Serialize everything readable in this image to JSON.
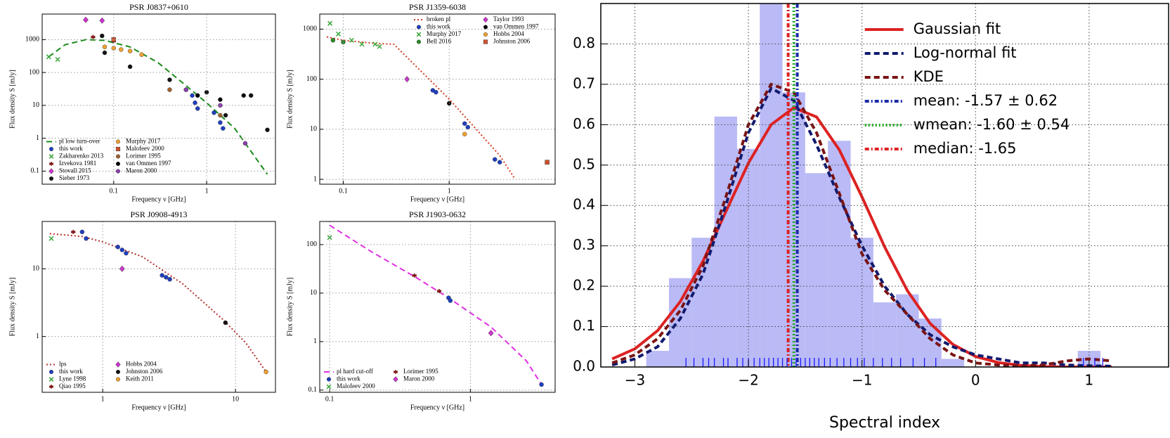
{
  "chart_data": [
    {
      "type": "scatter",
      "title": "PSR J0837+0610",
      "xlabel": "Frequency ν [GHz]",
      "ylabel": "Flux density S [mJy]",
      "xscale": "log",
      "yscale": "log",
      "xlim": [
        0.017,
        5.5
      ],
      "ylim": [
        0.04,
        6000
      ],
      "xticks": [
        0.1,
        1
      ],
      "yticks": [
        0.1,
        1,
        10,
        100,
        1000
      ],
      "grid": true,
      "legend_loc": "lower left",
      "legend_columns": 2,
      "series": [
        {
          "name": "pl low turn-over",
          "color": "#1a8c1a",
          "linestyle": "dashed",
          "x": [
            0.02,
            0.03,
            0.05,
            0.08,
            0.15,
            0.3,
            0.6,
            1,
            2,
            3,
            4.5
          ],
          "values": [
            300,
            700,
            1000,
            950,
            600,
            200,
            40,
            12,
            2,
            0.4,
            0.08
          ]
        },
        {
          "name": "this work",
          "color": "#1f3fbf",
          "marker": "circle",
          "x": [
            0.7,
            0.75,
            0.8,
            1.2,
            1.4,
            1.5
          ],
          "values": [
            20,
            12,
            8,
            6,
            3,
            2
          ]
        },
        {
          "name": "Zakharenko 2013",
          "color": "#3aa63a",
          "marker": "x",
          "x": [
            0.02,
            0.025
          ],
          "values": [
            300,
            250
          ]
        },
        {
          "name": "Izvekova 1981",
          "color": "#7a1010",
          "marker": "star",
          "x": [
            0.06,
            0.1
          ],
          "values": [
            1200,
            900
          ]
        },
        {
          "name": "Stovall 2015",
          "color": "#cc33cc",
          "marker": "diamond",
          "x": [
            0.05,
            0.075
          ],
          "values": [
            4000,
            3800
          ]
        },
        {
          "name": "Sieber 1973",
          "color": "#111111",
          "marker": "circle",
          "x": [
            0.075,
            0.08,
            0.15,
            0.4,
            1,
            1.6,
            3,
            4.5
          ],
          "values": [
            1300,
            400,
            150,
            60,
            25,
            5,
            20,
            1.8
          ]
        },
        {
          "name": "Murphy 2017",
          "color": "#f0a030",
          "marker": "circle",
          "x": [
            0.08,
            0.1,
            0.12,
            0.15,
            0.2
          ],
          "values": [
            600,
            550,
            500,
            450,
            350
          ]
        },
        {
          "name": "Malofeev 2000",
          "color": "#d2522a",
          "marker": "square",
          "x": [
            0.1
          ],
          "values": [
            1000
          ]
        },
        {
          "name": "Lorimer 1995",
          "color": "#a0622d",
          "marker": "circle",
          "x": [
            0.4,
            0.6,
            1.4
          ],
          "values": [
            30,
            30,
            5
          ]
        },
        {
          "name": "van Ommen 1997",
          "color": "#000000",
          "marker": "circle",
          "x": [
            0.8,
            1.4,
            2.5
          ],
          "values": [
            20,
            15,
            20
          ]
        },
        {
          "name": "Maron 2000",
          "color": "#8a3fb0",
          "marker": "circle",
          "x": [
            0.6,
            1.4,
            2.6
          ],
          "values": [
            30,
            10,
            0.7
          ]
        }
      ]
    },
    {
      "type": "scatter",
      "title": "PSR J1359-6038",
      "xlabel": "Frequency ν [GHz]",
      "ylabel": "Flux density S [mJy]",
      "xscale": "log",
      "yscale": "log",
      "xlim": [
        0.06,
        10
      ],
      "ylim": [
        0.8,
        2000
      ],
      "xticks": [
        0.1,
        1
      ],
      "yticks": [
        1,
        10,
        100,
        1000
      ],
      "grid": true,
      "legend_loc": "upper center",
      "legend_columns": 2,
      "series": [
        {
          "name": "broken pl",
          "color": "#d03a1a",
          "linestyle": "dotted",
          "x": [
            0.07,
            0.1,
            0.2,
            0.3,
            1,
            3,
            4.2
          ],
          "values": [
            700,
            600,
            520,
            500,
            40,
            3,
            1
          ]
        },
        {
          "name": "this work",
          "color": "#1f3fbf",
          "marker": "circle",
          "x": [
            0.7,
            0.75,
            1.4,
            1.5,
            2.7,
            3
          ],
          "values": [
            60,
            55,
            13,
            11,
            2.5,
            2.2
          ]
        },
        {
          "name": "Murphy 2017",
          "color": "#3aa63a",
          "marker": "x",
          "x": [
            0.075,
            0.09,
            0.12,
            0.15,
            0.2,
            0.22
          ],
          "values": [
            1300,
            800,
            600,
            500,
            500,
            450
          ]
        },
        {
          "name": "Bell 2016",
          "color": "#2a8a2a",
          "marker": "circle",
          "x": [
            0.08,
            0.1
          ],
          "values": [
            600,
            550
          ]
        },
        {
          "name": "Taylor 1993",
          "color": "#cc33cc",
          "marker": "diamond",
          "x": [
            0.4
          ],
          "values": [
            100
          ]
        },
        {
          "name": "van Ommen 1997",
          "color": "#000000",
          "marker": "circle",
          "x": [
            1
          ],
          "values": [
            33
          ]
        },
        {
          "name": "Hobbs 2004",
          "color": "#f0a030",
          "marker": "circle",
          "x": [
            1.4
          ],
          "values": [
            8
          ]
        },
        {
          "name": "Johnston 2006",
          "color": "#d2522a",
          "marker": "square",
          "x": [
            8.4
          ],
          "values": [
            2.2
          ]
        }
      ]
    },
    {
      "type": "scatter",
      "title": "PSR J0908-4913",
      "xlabel": "Frequency ν [GHz]",
      "ylabel": "Flux density S [mJy]",
      "xscale": "log",
      "yscale": "log",
      "xlim": [
        0.35,
        20
      ],
      "ylim": [
        0.15,
        50
      ],
      "xticks": [
        1,
        10
      ],
      "yticks": [
        1,
        10
      ],
      "grid": true,
      "legend_loc": "lower left",
      "legend_columns": 2,
      "series": [
        {
          "name": "lps",
          "color": "#b0302a",
          "linestyle": "dotted",
          "x": [
            0.4,
            0.7,
            1,
            2,
            4,
            8,
            12,
            17
          ],
          "values": [
            33,
            30,
            25,
            15,
            6,
            1.8,
            0.8,
            0.3
          ]
        },
        {
          "name": "this work",
          "color": "#1f3fbf",
          "marker": "circle",
          "x": [
            0.7,
            0.75,
            1.3,
            1.4,
            1.5,
            2.8,
            3,
            3.2
          ],
          "values": [
            35,
            28,
            21,
            19,
            17,
            8,
            7.5,
            7
          ]
        },
        {
          "name": "Lyne 1998",
          "color": "#3aa63a",
          "marker": "x",
          "x": [
            0.41
          ],
          "values": [
            28
          ]
        },
        {
          "name": "Qiao 1995",
          "color": "#7a1010",
          "marker": "star",
          "x": [
            0.6
          ],
          "values": [
            35
          ]
        },
        {
          "name": "Hobbs 2004",
          "color": "#cc33cc",
          "marker": "diamond",
          "x": [
            1.4
          ],
          "values": [
            10
          ]
        },
        {
          "name": "Johnston 2006",
          "color": "#111111",
          "marker": "circle",
          "x": [
            8.4
          ],
          "values": [
            1.6
          ]
        },
        {
          "name": "Keith 2011",
          "color": "#f0a030",
          "marker": "circle",
          "x": [
            17
          ],
          "values": [
            0.3
          ]
        }
      ]
    },
    {
      "type": "scatter",
      "title": "PSR J1903-0632",
      "xlabel": "Frequency ν [GHz]",
      "ylabel": "Flux density S [mJy]",
      "xscale": "log",
      "yscale": "log",
      "xlim": [
        0.085,
        4
      ],
      "ylim": [
        0.09,
        300
      ],
      "xticks": [
        0.1,
        1
      ],
      "yticks": [
        0.1,
        1,
        10,
        100
      ],
      "grid": true,
      "legend_loc": "lower left",
      "legend_columns": 2,
      "series": [
        {
          "name": "pl hard cut-off",
          "color": "#e030e0",
          "linestyle": "dashed",
          "x": [
            0.1,
            0.2,
            0.4,
            0.7,
            1.4,
            2.5,
            3.2
          ],
          "values": [
            250,
            70,
            22,
            8,
            2,
            0.4,
            0.13
          ]
        },
        {
          "name": "this work",
          "color": "#1f3fbf",
          "marker": "circle",
          "x": [
            0.7,
            0.72,
            3.2
          ],
          "values": [
            8,
            7,
            0.13
          ]
        },
        {
          "name": "Malofeev 2000",
          "color": "#3aa63a",
          "marker": "x",
          "x": [
            0.1
          ],
          "values": [
            140
          ]
        },
        {
          "name": "Lorimer 1995",
          "color": "#7a1010",
          "marker": "star",
          "x": [
            0.4,
            0.6
          ],
          "values": [
            23,
            11
          ]
        },
        {
          "name": "Maron 2000",
          "color": "#cc33cc",
          "marker": "diamond",
          "x": [
            1.4
          ],
          "values": [
            1.5
          ]
        }
      ]
    },
    {
      "type": "histogram",
      "xlabel": "Spectral index",
      "xlim": [
        -3.3,
        1.7
      ],
      "ylim": [
        0,
        0.9
      ],
      "xticks": [
        {
          "value": -3,
          "label": "−3"
        },
        {
          "value": -2,
          "label": "−2"
        },
        {
          "value": -1,
          "label": "−1"
        },
        0,
        1
      ],
      "yticks": [
        {
          "value": 0,
          "label": "0.0"
        },
        0.1,
        0.2,
        0.3,
        0.4,
        0.5,
        0.6,
        0.7,
        0.8
      ],
      "grid": true,
      "legend_loc": "upper right",
      "legend_columns": 1,
      "color": "#b3b3f5",
      "bins": [
        -3.1,
        -2.9,
        -2.7,
        -2.5,
        -2.3,
        -2.1,
        -1.9,
        -1.7,
        -1.5,
        -1.3,
        -1.1,
        -0.9,
        -0.7,
        -0.5,
        -0.3,
        -0.1,
        0.1,
        0.3,
        0.5,
        0.7,
        0.9,
        1.1
      ],
      "counts": [
        0,
        0.04,
        0.22,
        0.32,
        0.62,
        0.54,
        0.94,
        0.68,
        0.48,
        0.56,
        0.32,
        0.16,
        0.18,
        0.12,
        0.02,
        0,
        0,
        0,
        0,
        0,
        0.04
      ],
      "series": [
        {
          "name": "Gaussian fit",
          "color": "#dd2222",
          "linestyle": "solid",
          "x": [
            -3.2,
            -3.0,
            -2.8,
            -2.6,
            -2.4,
            -2.2,
            -2.0,
            -1.8,
            -1.6,
            -1.4,
            -1.2,
            -1.0,
            -0.8,
            -0.6,
            -0.4,
            -0.2,
            0.0,
            0.2,
            0.4,
            0.6,
            0.8,
            1.0,
            1.2
          ],
          "values": [
            0.02,
            0.045,
            0.09,
            0.162,
            0.262,
            0.384,
            0.505,
            0.6,
            0.642,
            0.619,
            0.538,
            0.421,
            0.297,
            0.189,
            0.108,
            0.056,
            0.026,
            0.011,
            0.004,
            0.001,
            0,
            0,
            0
          ]
        },
        {
          "name": "Log-normal fit",
          "color": "#101a6e",
          "linestyle": "dashed",
          "x": [
            -3.2,
            -3.0,
            -2.8,
            -2.6,
            -2.4,
            -2.2,
            -2.0,
            -1.8,
            -1.6,
            -1.4,
            -1.2,
            -1.0,
            -0.8,
            -0.6,
            -0.4,
            -0.2,
            0.0,
            0.2,
            0.4,
            0.6,
            0.8,
            1.0,
            1.2
          ],
          "values": [
            0.005,
            0.02,
            0.05,
            0.12,
            0.23,
            0.4,
            0.58,
            0.69,
            0.66,
            0.55,
            0.42,
            0.3,
            0.2,
            0.13,
            0.08,
            0.05,
            0.03,
            0.02,
            0.01,
            0.01,
            0.005,
            0.003,
            0.002
          ]
        },
        {
          "name": "KDE",
          "color": "#7a1414",
          "linestyle": "dashed",
          "x": [
            -3.2,
            -3.0,
            -2.8,
            -2.6,
            -2.4,
            -2.2,
            -2.0,
            -1.8,
            -1.6,
            -1.4,
            -1.2,
            -1.0,
            -0.8,
            -0.6,
            -0.4,
            -0.2,
            0.0,
            0.2,
            0.4,
            0.6,
            0.8,
            1.0,
            1.2
          ],
          "values": [
            0.01,
            0.03,
            0.07,
            0.14,
            0.25,
            0.42,
            0.6,
            0.7,
            0.68,
            0.58,
            0.43,
            0.28,
            0.19,
            0.13,
            0.07,
            0.03,
            0.01,
            0.005,
            0.003,
            0.005,
            0.015,
            0.02,
            0.015
          ]
        }
      ],
      "vlines": [
        {
          "name": "mean: -1.57 ± 0.62",
          "color": "#1a2aa8",
          "linestyle": "dashdot",
          "value": -1.57
        },
        {
          "name": "wmean: -1.60 ± 0.54",
          "color": "#22aa22",
          "linestyle": "dotted",
          "value": -1.6
        },
        {
          "name": "median: -1.65",
          "color": "#dd2222",
          "linestyle": "dashdot",
          "value": -1.65
        }
      ],
      "rug": {
        "color": "#1a1aff",
        "values": [
          -2.55,
          -2.48,
          -2.4,
          -2.35,
          -2.3,
          -2.22,
          -2.18,
          -2.1,
          -2.05,
          -2.0,
          -1.95,
          -1.9,
          -1.86,
          -1.82,
          -1.78,
          -1.74,
          -1.7,
          -1.66,
          -1.62,
          -1.58,
          -1.54,
          -1.5,
          -1.46,
          -1.42,
          -1.38,
          -1.33,
          -1.28,
          -1.22,
          -1.16,
          -1.1,
          -1.04,
          -0.98,
          -0.9,
          -0.82,
          -0.74,
          -0.66,
          -0.55,
          -0.45,
          -0.35,
          0.95,
          1.05,
          1.12
        ]
      }
    }
  ]
}
